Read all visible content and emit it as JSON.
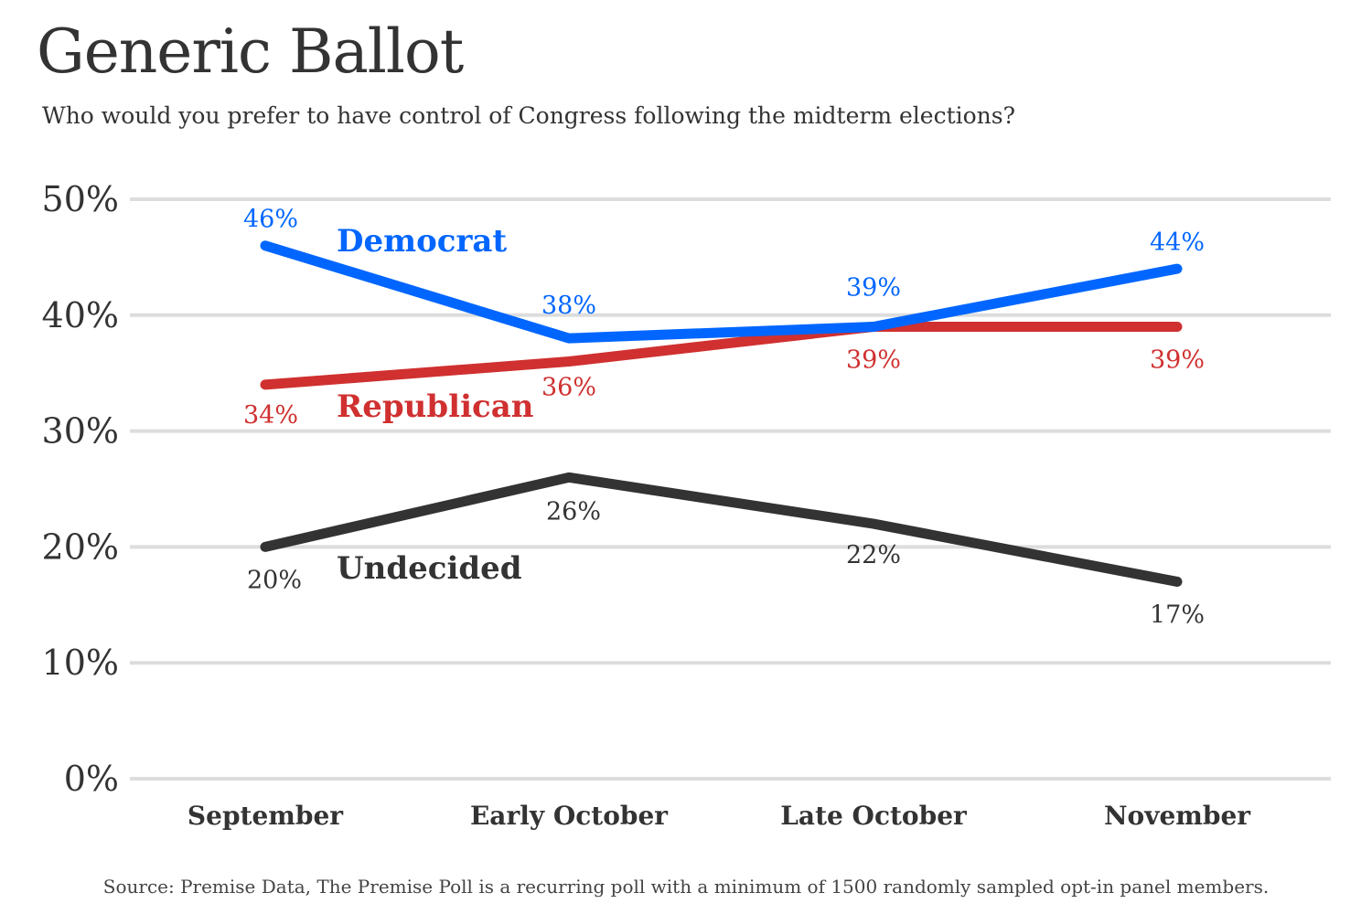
{
  "title": "Generic Ballot",
  "subtitle": "Who would you prefer to have control of Congress following the midterm elections?",
  "source": "Source: Premise Data, The Premise Poll is a recurring poll with a minimum of 1500 randomly sampled opt-in panel members.",
  "chart_data": {
    "type": "line",
    "title": "Generic Ballot",
    "subtitle": "Who would you prefer to have control of Congress following the midterm elections?",
    "categories": [
      "September",
      "Early October",
      "Late October",
      "November"
    ],
    "ylim": [
      0,
      50
    ],
    "yticks": [
      0,
      10,
      20,
      30,
      40,
      50
    ],
    "ytick_labels": [
      "0%",
      "10%",
      "20%",
      "30%",
      "40%",
      "50%"
    ],
    "grid": true,
    "legend": "inline labels",
    "series": [
      {
        "name": "Democrat",
        "values": [
          46,
          38,
          39,
          44
        ],
        "labels": [
          "46%",
          "38%",
          "39%",
          "44%"
        ],
        "color": "#0066ff"
      },
      {
        "name": "Republican",
        "values": [
          34,
          36,
          39,
          39
        ],
        "labels": [
          "34%",
          "36%",
          "39%",
          "39%"
        ],
        "color": "#d03030"
      },
      {
        "name": "Undecided",
        "values": [
          20,
          26,
          22,
          17
        ],
        "labels": [
          "20%",
          "26%",
          "22%",
          "17%"
        ],
        "color": "#333333"
      }
    ]
  }
}
